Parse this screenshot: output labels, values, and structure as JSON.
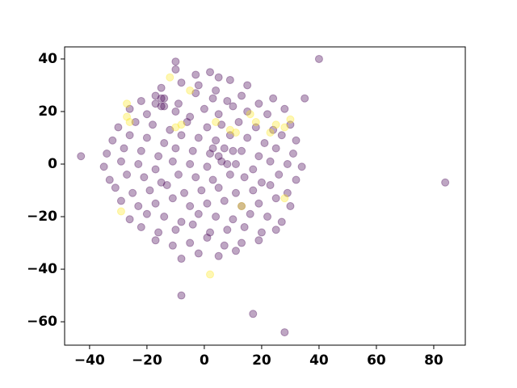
{
  "chart_data": {
    "type": "scatter",
    "xlim": [
      -48.7,
      91
    ],
    "ylim": [
      -68.9,
      44.6
    ],
    "xticks": [
      {
        "value": -40,
        "label": "−40"
      },
      {
        "value": -20,
        "label": "−20"
      },
      0,
      20,
      40,
      60,
      80
    ],
    "yticks": [
      {
        "value": -60,
        "label": "−60"
      },
      {
        "value": -40,
        "label": "−40"
      },
      {
        "value": -20,
        "label": "−20"
      },
      0,
      20,
      40
    ],
    "alpha": 0.35,
    "series": [
      {
        "color": "#440154",
        "x": [
          -10,
          -3,
          2,
          5,
          -15,
          -8,
          -2,
          4,
          9,
          15,
          -22,
          -17,
          -14,
          -9,
          -3,
          3,
          8,
          13,
          19,
          24,
          -26,
          -20,
          -15,
          -10,
          -5,
          0,
          5,
          10,
          15,
          22,
          28,
          -30,
          -24,
          -18,
          -12,
          -6,
          1,
          6,
          12,
          18,
          24,
          30,
          -32,
          -26,
          -20,
          -14,
          -8,
          -2,
          4,
          9,
          15,
          21,
          27,
          32,
          -34,
          -28,
          -22,
          -16,
          -10,
          -4,
          2,
          7,
          13,
          19,
          25,
          31,
          -35,
          -29,
          -23,
          -17,
          -11,
          -5,
          1,
          6,
          11,
          17,
          23,
          29,
          34,
          -33,
          -27,
          -21,
          -15,
          -9,
          -3,
          3,
          9,
          14,
          20,
          26,
          32,
          -31,
          -25,
          -19,
          -13,
          -7,
          -1,
          5,
          11,
          17,
          23,
          29,
          -29,
          -23,
          -17,
          -11,
          -5,
          1,
          7,
          13,
          19,
          25,
          30,
          -26,
          -20,
          -14,
          -8,
          -2,
          4,
          10,
          16,
          22,
          27,
          -22,
          -16,
          -10,
          -4,
          2,
          8,
          14,
          20,
          25,
          -17,
          -11,
          -5,
          1,
          7,
          13,
          19,
          -8,
          -2,
          5,
          11,
          -43,
          84,
          40,
          -8,
          17,
          28,
          -10,
          35,
          -17,
          -15,
          -14,
          5,
          8,
          3,
          10
        ],
        "y": [
          36,
          34,
          35,
          33,
          29,
          31,
          30,
          28,
          32,
          30,
          24,
          26,
          25,
          23,
          27,
          25,
          24,
          26,
          23,
          25,
          21,
          19,
          22,
          20,
          18,
          21,
          19,
          22,
          20,
          19,
          21,
          14,
          16,
          15,
          13,
          16,
          14,
          15,
          16,
          14,
          13,
          15,
          9,
          11,
          10,
          8,
          11,
          10,
          9,
          11,
          10,
          8,
          11,
          9,
          4,
          6,
          5,
          3,
          6,
          5,
          4,
          6,
          5,
          3,
          6,
          4,
          -1,
          1,
          0,
          -2,
          1,
          0,
          -1,
          1,
          0,
          -2,
          1,
          0,
          -1,
          -6,
          -4,
          -5,
          -7,
          -4,
          -5,
          -6,
          -4,
          -5,
          -7,
          -4,
          -6,
          -9,
          -11,
          -10,
          -8,
          -11,
          -10,
          -9,
          -11,
          -10,
          -8,
          -11,
          -14,
          -16,
          -15,
          -13,
          -16,
          -15,
          -14,
          -16,
          -15,
          -13,
          -16,
          -21,
          -19,
          -20,
          -22,
          -19,
          -20,
          -21,
          -19,
          -20,
          -22,
          -24,
          -26,
          -25,
          -23,
          -26,
          -25,
          -24,
          -26,
          -25,
          -29,
          -31,
          -30,
          -28,
          -31,
          -30,
          -29,
          -36,
          -34,
          -35,
          -33,
          3,
          -7,
          40,
          -50,
          -57,
          -64,
          39,
          25,
          23,
          25,
          22,
          3,
          0,
          6,
          5
        ]
      },
      {
        "color": "#fde725",
        "x": [
          -10,
          -27,
          -26,
          4,
          9,
          11,
          18,
          25,
          28,
          13,
          -29,
          -5,
          2,
          28,
          -27,
          -12,
          -8,
          16,
          30,
          23
        ],
        "y": [
          14,
          18,
          16,
          16,
          13,
          12,
          16,
          15,
          14,
          -16,
          -18,
          28,
          -42,
          -13,
          23,
          33,
          15,
          19,
          17,
          12
        ]
      }
    ]
  }
}
